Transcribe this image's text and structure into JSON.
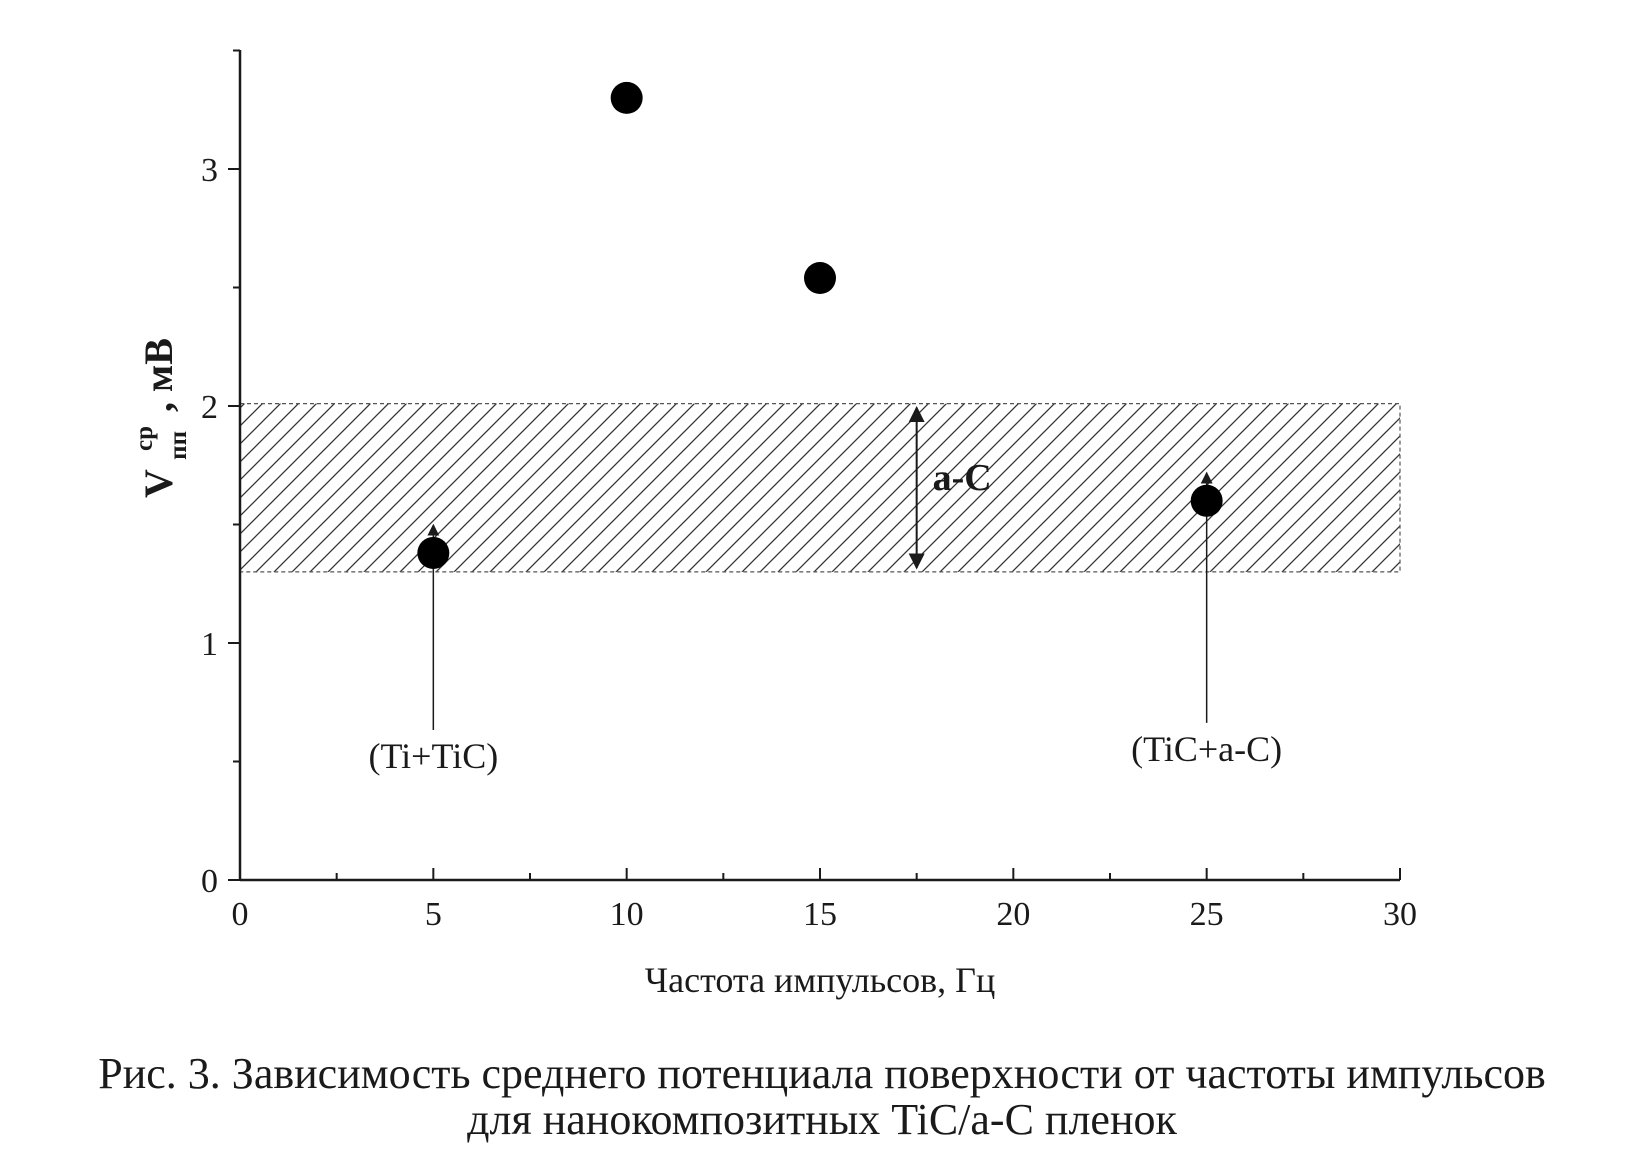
{
  "chart_data": {
    "type": "scatter",
    "xlabel": "Частота импульсов, Гц",
    "ylabel": {
      "main": "V",
      "sup": "ср",
      "sub": "пп",
      "unit": ", мВ"
    },
    "xlim": [
      0,
      30
    ],
    "ylim": [
      0,
      3.5
    ],
    "x_ticks": [
      0,
      5,
      10,
      15,
      20,
      25,
      30
    ],
    "y_ticks": [
      0,
      1,
      2,
      3
    ],
    "x_minor_step": 2.5,
    "y_minor_step": 0.5,
    "grid": false,
    "series": [
      {
        "x": [
          5,
          10,
          15,
          25
        ],
        "y": [
          1.38,
          3.3,
          2.54,
          1.6
        ]
      }
    ],
    "band": {
      "y_from": 1.3,
      "y_to": 2.01,
      "x_from": 0,
      "x_to": 30,
      "label": "a-C",
      "label_x": 17.5
    },
    "annotations": [
      {
        "text": "(Ti+TiC)",
        "x": 5,
        "y": 1.38,
        "text_y": 0.65
      },
      {
        "text": "(TiC+a-C)",
        "x": 25,
        "y": 1.6,
        "text_y": 0.68
      }
    ],
    "colors": {
      "marker": "#000000",
      "axis": "#1a1a1a",
      "hatch": "#333333"
    }
  },
  "caption": {
    "line1": "Рис. 3. Зависимость среднего потенциала поверхности от частоты импульсов",
    "line2": "для нанокомпозитных TiC/a-C пленок"
  }
}
